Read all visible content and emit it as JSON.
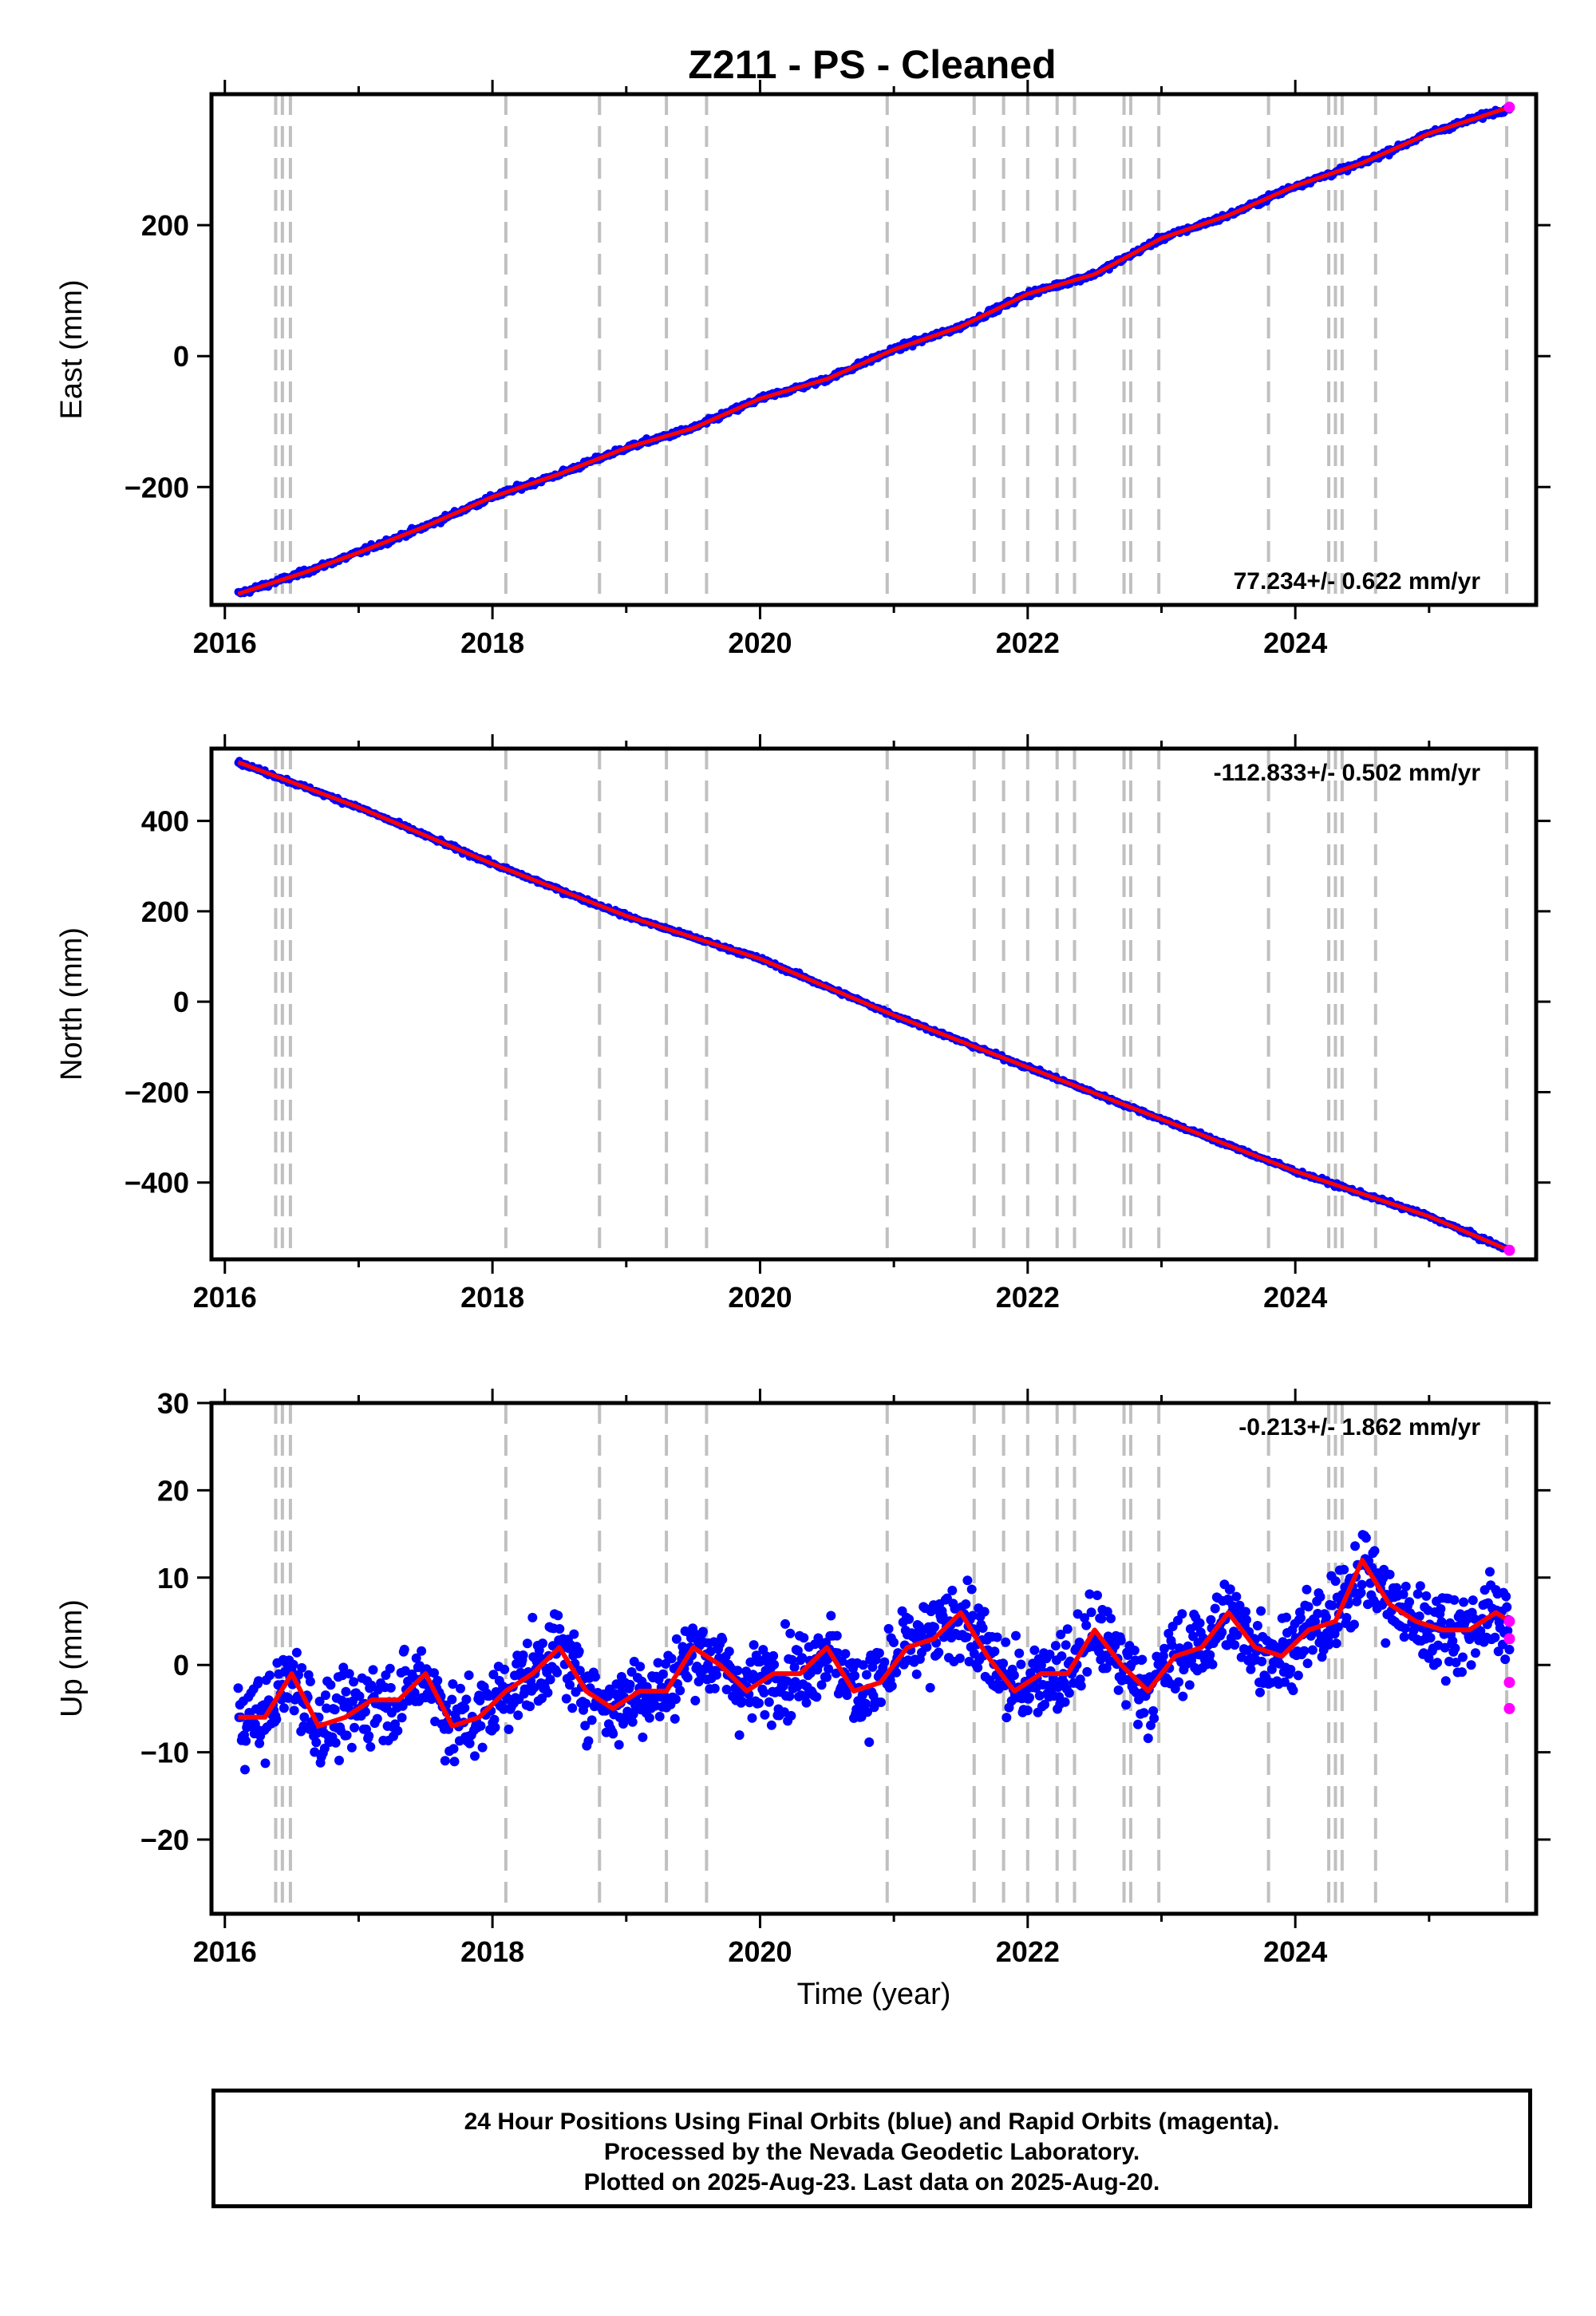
{
  "title": "Z211  - PS - Cleaned",
  "colors": {
    "final_orbits": "#0000ff",
    "rapid_orbits": "#ff00ff",
    "model": "#ff0000",
    "event_lines": "#c0c0c0"
  },
  "event_line_years": [
    2016.38,
    2016.43,
    2016.49,
    2018.1,
    2018.8,
    2019.3,
    2019.6,
    2020.95,
    2021.6,
    2021.82,
    2022.0,
    2022.22,
    2022.35,
    2022.72,
    2022.77,
    2022.98,
    2023.8,
    2024.25,
    2024.3,
    2024.35,
    2024.6,
    2025.58
  ],
  "chart_data": [
    {
      "type": "scatter",
      "name": "east",
      "ylabel": "East (mm)",
      "xlabel": "",
      "xlim": [
        2015.9,
        2025.8
      ],
      "ylim": [
        -380,
        400
      ],
      "x_ticks": [
        "2016",
        "2018",
        "2020",
        "2022",
        "2024"
      ],
      "y_ticks": [
        "200",
        "0",
        "−200"
      ],
      "y_tick_values": [
        200,
        0,
        -200
      ],
      "rate_label": "77.234+/- 0.622 mm/yr",
      "rate_position": "bottom-right",
      "trend": {
        "x": [
          2016.1,
          2016.6,
          2017.0,
          2017.5,
          2018.0,
          2018.5,
          2019.0,
          2019.5,
          2020.0,
          2020.5,
          2021.0,
          2021.5,
          2022.0,
          2022.5,
          2023.0,
          2023.5,
          2024.0,
          2024.5,
          2025.0,
          2025.6
        ],
        "y": [
          -363,
          -330,
          -300,
          -260,
          -215,
          -180,
          -140,
          -110,
          -65,
          -35,
          10,
          45,
          95,
          125,
          180,
          215,
          260,
          295,
          340,
          380
        ]
      },
      "rapid_points": {
        "x": [
          2025.6
        ],
        "y": [
          380
        ]
      }
    },
    {
      "type": "scatter",
      "name": "north",
      "ylabel": "North (mm)",
      "xlabel": "",
      "xlim": [
        2015.9,
        2025.8
      ],
      "ylim": [
        -570,
        560
      ],
      "x_ticks": [
        "2016",
        "2018",
        "2020",
        "2022",
        "2024"
      ],
      "y_ticks": [
        "400",
        "200",
        "0",
        "−200",
        "−400"
      ],
      "y_tick_values": [
        400,
        200,
        0,
        -200,
        -400
      ],
      "rate_label": "-112.833+/- 0.502 mm/yr",
      "rate_position": "top-right",
      "trend": {
        "x": [
          2016.1,
          2017.0,
          2018.0,
          2019.0,
          2020.0,
          2021.0,
          2022.0,
          2023.0,
          2024.0,
          2025.0,
          2025.6
        ],
        "y": [
          530,
          430,
          305,
          190,
          95,
          -30,
          -145,
          -260,
          -375,
          -475,
          -550
        ]
      },
      "rapid_points": {
        "x": [
          2025.6
        ],
        "y": [
          -550
        ]
      }
    },
    {
      "type": "scatter",
      "name": "up",
      "ylabel": "Up (mm)",
      "xlabel": "Time (year)",
      "xlim": [
        2015.9,
        2025.8
      ],
      "ylim": [
        -28.5,
        30
      ],
      "x_ticks": [
        "2016",
        "2018",
        "2020",
        "2022",
        "2024"
      ],
      "y_ticks": [
        "30",
        "20",
        "10",
        "0",
        "−10",
        "−20"
      ],
      "y_tick_values": [
        30,
        20,
        10,
        0,
        -10,
        -20
      ],
      "rate_label": "-0.213+/- 1.862 mm/yr",
      "rate_position": "top-right",
      "trend": {
        "x": [
          2016.1,
          2016.3,
          2016.5,
          2016.7,
          2016.9,
          2017.1,
          2017.3,
          2017.5,
          2017.7,
          2017.9,
          2018.1,
          2018.3,
          2018.5,
          2018.7,
          2018.9,
          2019.1,
          2019.3,
          2019.5,
          2019.7,
          2019.9,
          2020.1,
          2020.3,
          2020.5,
          2020.7,
          2020.9,
          2021.1,
          2021.3,
          2021.5,
          2021.7,
          2021.9,
          2022.1,
          2022.3,
          2022.5,
          2022.7,
          2022.9,
          2023.1,
          2023.3,
          2023.5,
          2023.7,
          2023.9,
          2024.1,
          2024.3,
          2024.5,
          2024.7,
          2024.9,
          2025.1,
          2025.3,
          2025.5,
          2025.6
        ],
        "y": [
          -6,
          -6,
          -1,
          -7,
          -6,
          -4,
          -4,
          -1,
          -7,
          -6,
          -3,
          -1,
          2,
          -3,
          -5,
          -3,
          -3,
          2,
          0,
          -3,
          -1,
          -1,
          2,
          -3,
          -2,
          2,
          3,
          6,
          1,
          -3,
          -1,
          -1,
          4,
          0,
          -3,
          1,
          2,
          6,
          2,
          1,
          4,
          5,
          12,
          7,
          5,
          4,
          4,
          6,
          5
        ]
      },
      "rapid_points": {
        "x": [
          2025.6,
          2025.6,
          2025.6,
          2025.6
        ],
        "y": [
          5,
          3,
          -2,
          -5
        ]
      }
    }
  ],
  "footer": {
    "line1": "24 Hour Positions Using Final Orbits (blue) and Rapid Orbits (magenta).",
    "line2": "Processed by the Nevada Geodetic Laboratory.",
    "line3": "Plotted on 2025-Aug-23. Last data on 2025-Aug-20."
  }
}
